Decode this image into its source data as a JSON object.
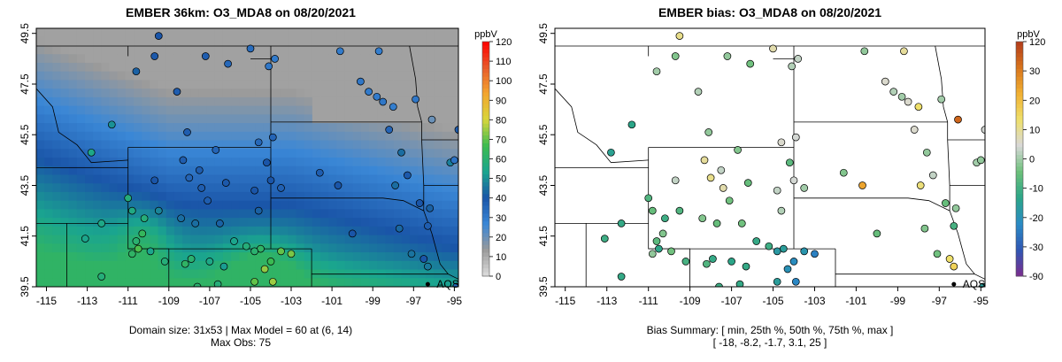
{
  "chart_data": [
    {
      "type": "heatmap",
      "title": "EMBER 36km: O3_MDA8 on 08/20/2021",
      "xlim": [
        -115.5,
        -94.8
      ],
      "ylim": [
        39.5,
        49.7
      ],
      "x_ticks": [
        "-115",
        "-113",
        "-111",
        "-109",
        "-107",
        "-105",
        "-103",
        "-101",
        "-99",
        "-97",
        "-95"
      ],
      "y_ticks": [
        "39.5",
        "41.5",
        "43.5",
        "45.5",
        "47.5",
        "49.5"
      ],
      "colorbar": {
        "unit": "ppbV",
        "min": 0,
        "max": 120,
        "ticks": [
          "0",
          "10",
          "20",
          "30",
          "40",
          "50",
          "60",
          "70",
          "80",
          "90",
          "100",
          "110",
          "120"
        ],
        "colors": [
          "#dddddd",
          "#9a9a9a",
          "#3a87d6",
          "#1a55a8",
          "#1aa58f",
          "#3cbb4f",
          "#d8d63b",
          "#f3a52f",
          "#e85a2b",
          "#ff0000"
        ]
      },
      "marker": {
        "label": "AQS",
        "lon": -96.3,
        "lat": 39.6
      },
      "observations": [
        [
          -109.5,
          49.4,
          40
        ],
        [
          -107.2,
          48.6,
          38
        ],
        [
          -110.6,
          48.0,
          42
        ],
        [
          -109.7,
          48.6,
          39
        ],
        [
          -105.0,
          48.9,
          34
        ],
        [
          -106.1,
          48.3,
          35
        ],
        [
          -103.8,
          48.5,
          30
        ],
        [
          -108.6,
          47.2,
          38
        ],
        [
          -104.1,
          48.2,
          31
        ],
        [
          -100.6,
          48.8,
          30
        ],
        [
          -98.7,
          48.8,
          29
        ],
        [
          -99.6,
          47.6,
          31
        ],
        [
          -99.2,
          47.2,
          30
        ],
        [
          -98.8,
          47.0,
          30
        ],
        [
          -98.5,
          46.8,
          31
        ],
        [
          -98.0,
          46.6,
          29
        ],
        [
          -96.9,
          46.9,
          31
        ],
        [
          -96.1,
          46.1,
          20
        ],
        [
          -94.8,
          45.7,
          38
        ],
        [
          -112.8,
          44.8,
          55
        ],
        [
          -111.8,
          45.9,
          50
        ],
        [
          -109.7,
          43.7,
          40
        ],
        [
          -108.1,
          45.6,
          38
        ],
        [
          -106.7,
          44.9,
          36
        ],
        [
          -104.6,
          45.2,
          35
        ],
        [
          -103.9,
          45.4,
          36
        ],
        [
          -108.3,
          44.5,
          38
        ],
        [
          -107.5,
          44.1,
          38
        ],
        [
          -107.1,
          42.9,
          38
        ],
        [
          -106.2,
          43.6,
          39
        ],
        [
          -104.8,
          43.3,
          40
        ],
        [
          -104.2,
          44.4,
          40
        ],
        [
          -103.5,
          43.4,
          37
        ],
        [
          -101.6,
          44.0,
          38
        ],
        [
          -100.7,
          43.5,
          40
        ],
        [
          -97.6,
          44.8,
          44
        ],
        [
          -97.9,
          43.5,
          44
        ],
        [
          -97.7,
          41.8,
          43
        ],
        [
          -96.2,
          42.6,
          42
        ],
        [
          -96.7,
          42.8,
          40
        ],
        [
          -95.2,
          44.4,
          47
        ],
        [
          -95.0,
          44.5,
          32
        ],
        [
          -108.0,
          43.8,
          36
        ],
        [
          -107.4,
          43.4,
          38
        ],
        [
          -108.4,
          42.2,
          44
        ],
        [
          -107.7,
          42.0,
          44
        ],
        [
          -106.5,
          42.0,
          42
        ],
        [
          -109.5,
          42.5,
          48
        ],
        [
          -110.2,
          42.2,
          58
        ],
        [
          -111.0,
          43.0,
          58
        ],
        [
          -110.8,
          42.5,
          56
        ],
        [
          -112.3,
          42.0,
          55
        ],
        [
          -110.3,
          41.6,
          64
        ],
        [
          -110.6,
          41.3,
          60
        ],
        [
          -110.5,
          41.0,
          68
        ],
        [
          -110.8,
          40.8,
          62
        ],
        [
          -109.9,
          40.9,
          54
        ],
        [
          -109.2,
          40.5,
          58
        ],
        [
          -108.2,
          40.4,
          62
        ],
        [
          -107.9,
          40.6,
          60
        ],
        [
          -107.0,
          40.5,
          55
        ],
        [
          -106.3,
          40.3,
          52
        ],
        [
          -105.2,
          41.1,
          58
        ],
        [
          -104.5,
          41.0,
          62
        ],
        [
          -105.8,
          41.3,
          54
        ],
        [
          -104.8,
          40.9,
          60
        ],
        [
          -104.0,
          40.5,
          66
        ],
        [
          -103.5,
          40.9,
          70
        ],
        [
          -103.0,
          40.8,
          72
        ],
        [
          -104.3,
          40.2,
          74
        ],
        [
          -103.9,
          39.7,
          75
        ],
        [
          -104.8,
          39.7,
          70
        ],
        [
          -106.6,
          39.6,
          58
        ],
        [
          -107.6,
          39.5,
          60
        ],
        [
          -112.3,
          39.9,
          58
        ],
        [
          -113.1,
          41.4,
          54
        ],
        [
          -104.0,
          43.7,
          40
        ],
        [
          -104.6,
          42.5,
          42
        ],
        [
          -100.0,
          41.6,
          40
        ],
        [
          -96.3,
          41.9,
          38
        ],
        [
          -97.1,
          40.8,
          45
        ],
        [
          -96.5,
          40.6,
          40
        ],
        [
          -96.3,
          40.3,
          46
        ],
        [
          -94.9,
          39.5,
          35
        ],
        [
          -97.3,
          43.9,
          39
        ],
        [
          -98.2,
          45.7,
          36
        ]
      ]
    },
    {
      "type": "scatter",
      "title": "EMBER bias: O3_MDA8 on 08/20/2021",
      "xlim": [
        -115.5,
        -94.8
      ],
      "ylim": [
        39.5,
        49.7
      ],
      "x_ticks": [
        "-115",
        "-113",
        "-111",
        "-109",
        "-107",
        "-105",
        "-103",
        "-101",
        "-99",
        "-97",
        "-95"
      ],
      "y_ticks": [
        "39.5",
        "41.5",
        "43.5",
        "45.5",
        "47.5",
        "49.5"
      ],
      "colorbar": {
        "unit": "ppbV",
        "ticks": [
          "-90",
          "-30",
          "-20",
          "-10",
          "0",
          "10",
          "20",
          "30",
          "120"
        ],
        "colors": [
          "#7b2d8e",
          "#2f56b3",
          "#2a8ac5",
          "#2ba588",
          "#6cc07a",
          "#d8d8d8",
          "#efe06a",
          "#f1b032",
          "#d8741c",
          "#b23b1b"
        ]
      },
      "marker": {
        "label": "AQS",
        "lon": -96.3,
        "lat": 39.6
      },
      "summary_line1": "Bias Summary: [ min, 25th %, 50th %, 75th %, max ]",
      "summary_line2": "[ -18,  -8.2,  -1.7,  3.1,  25 ]",
      "footer_left_1": "Domain size: 31x53 | Max Model = 60 at (6, 14)",
      "footer_left_2": "Max Obs: 75",
      "stations": [
        [
          -109.5,
          49.4,
          8
        ],
        [
          -107.2,
          48.6,
          -1
        ],
        [
          -110.6,
          48.0,
          0
        ],
        [
          -109.7,
          48.6,
          -2
        ],
        [
          -105.0,
          48.9,
          6
        ],
        [
          -106.1,
          48.3,
          -3
        ],
        [
          -103.8,
          48.5,
          2
        ],
        [
          -108.6,
          47.2,
          1
        ],
        [
          -104.1,
          48.2,
          1
        ],
        [
          -100.6,
          48.8,
          -1
        ],
        [
          -98.7,
          48.8,
          7
        ],
        [
          -99.6,
          47.6,
          4
        ],
        [
          -99.2,
          47.2,
          1
        ],
        [
          -98.8,
          47.0,
          0
        ],
        [
          -98.5,
          46.8,
          4
        ],
        [
          -98.0,
          46.6,
          10
        ],
        [
          -96.9,
          46.9,
          0
        ],
        [
          -96.1,
          46.1,
          25
        ],
        [
          -94.8,
          45.7,
          3
        ],
        [
          -112.8,
          44.8,
          -11
        ],
        [
          -111.8,
          45.9,
          -10
        ],
        [
          -109.7,
          43.7,
          2
        ],
        [
          -108.1,
          45.6,
          -1
        ],
        [
          -106.7,
          44.9,
          -2
        ],
        [
          -104.6,
          45.2,
          4
        ],
        [
          -103.9,
          45.4,
          3
        ],
        [
          -108.3,
          44.5,
          7
        ],
        [
          -107.5,
          44.1,
          2
        ],
        [
          -107.1,
          42.9,
          -3
        ],
        [
          -106.2,
          43.6,
          -4
        ],
        [
          -104.8,
          43.3,
          2
        ],
        [
          -104.2,
          44.4,
          -5
        ],
        [
          -103.5,
          43.4,
          0
        ],
        [
          -101.6,
          44.0,
          -2
        ],
        [
          -100.7,
          43.5,
          18
        ],
        [
          -97.6,
          44.8,
          -1
        ],
        [
          -97.9,
          43.5,
          9
        ],
        [
          -97.7,
          41.8,
          -2
        ],
        [
          -96.2,
          42.6,
          -1
        ],
        [
          -96.7,
          42.8,
          -4
        ],
        [
          -95.2,
          44.4,
          0
        ],
        [
          -95.0,
          44.5,
          -1
        ],
        [
          -108.0,
          43.8,
          8
        ],
        [
          -107.4,
          43.4,
          6
        ],
        [
          -108.4,
          42.2,
          -2
        ],
        [
          -107.7,
          42.0,
          -4
        ],
        [
          -106.5,
          42.0,
          -3
        ],
        [
          -109.5,
          42.5,
          -6
        ],
        [
          -110.2,
          42.2,
          -8
        ],
        [
          -111.0,
          43.0,
          -6
        ],
        [
          -110.8,
          42.5,
          -4
        ],
        [
          -112.3,
          42.0,
          -9
        ],
        [
          -110.3,
          41.6,
          -2
        ],
        [
          -110.6,
          41.3,
          -5
        ],
        [
          -110.5,
          41.0,
          -10
        ],
        [
          -110.8,
          40.8,
          -1
        ],
        [
          -109.9,
          40.9,
          -3
        ],
        [
          -109.2,
          40.5,
          -7
        ],
        [
          -108.2,
          40.4,
          -6
        ],
        [
          -107.9,
          40.6,
          -9
        ],
        [
          -107.0,
          40.5,
          -10
        ],
        [
          -106.3,
          40.3,
          -9
        ],
        [
          -105.2,
          41.1,
          -8
        ],
        [
          -104.5,
          41.0,
          -12
        ],
        [
          -105.8,
          41.3,
          -9
        ],
        [
          -104.8,
          40.9,
          -13
        ],
        [
          -104.0,
          40.5,
          -16
        ],
        [
          -103.5,
          40.9,
          -14
        ],
        [
          -103.0,
          40.8,
          -18
        ],
        [
          -104.3,
          40.2,
          -15
        ],
        [
          -103.9,
          39.7,
          -17
        ],
        [
          -104.8,
          39.7,
          -12
        ],
        [
          -106.6,
          39.6,
          -9
        ],
        [
          -107.6,
          39.5,
          -8
        ],
        [
          -112.3,
          39.9,
          -9
        ],
        [
          -113.1,
          41.4,
          -8
        ],
        [
          -104.0,
          43.7,
          3
        ],
        [
          -104.6,
          42.5,
          1
        ],
        [
          -100.0,
          41.6,
          -4
        ],
        [
          -96.3,
          41.9,
          -7
        ],
        [
          -97.1,
          40.8,
          -3
        ],
        [
          -96.5,
          40.6,
          10
        ],
        [
          -96.3,
          40.3,
          12
        ],
        [
          -94.9,
          39.5,
          -12
        ],
        [
          -97.3,
          43.9,
          2
        ],
        [
          -98.2,
          45.7,
          4
        ]
      ]
    }
  ]
}
